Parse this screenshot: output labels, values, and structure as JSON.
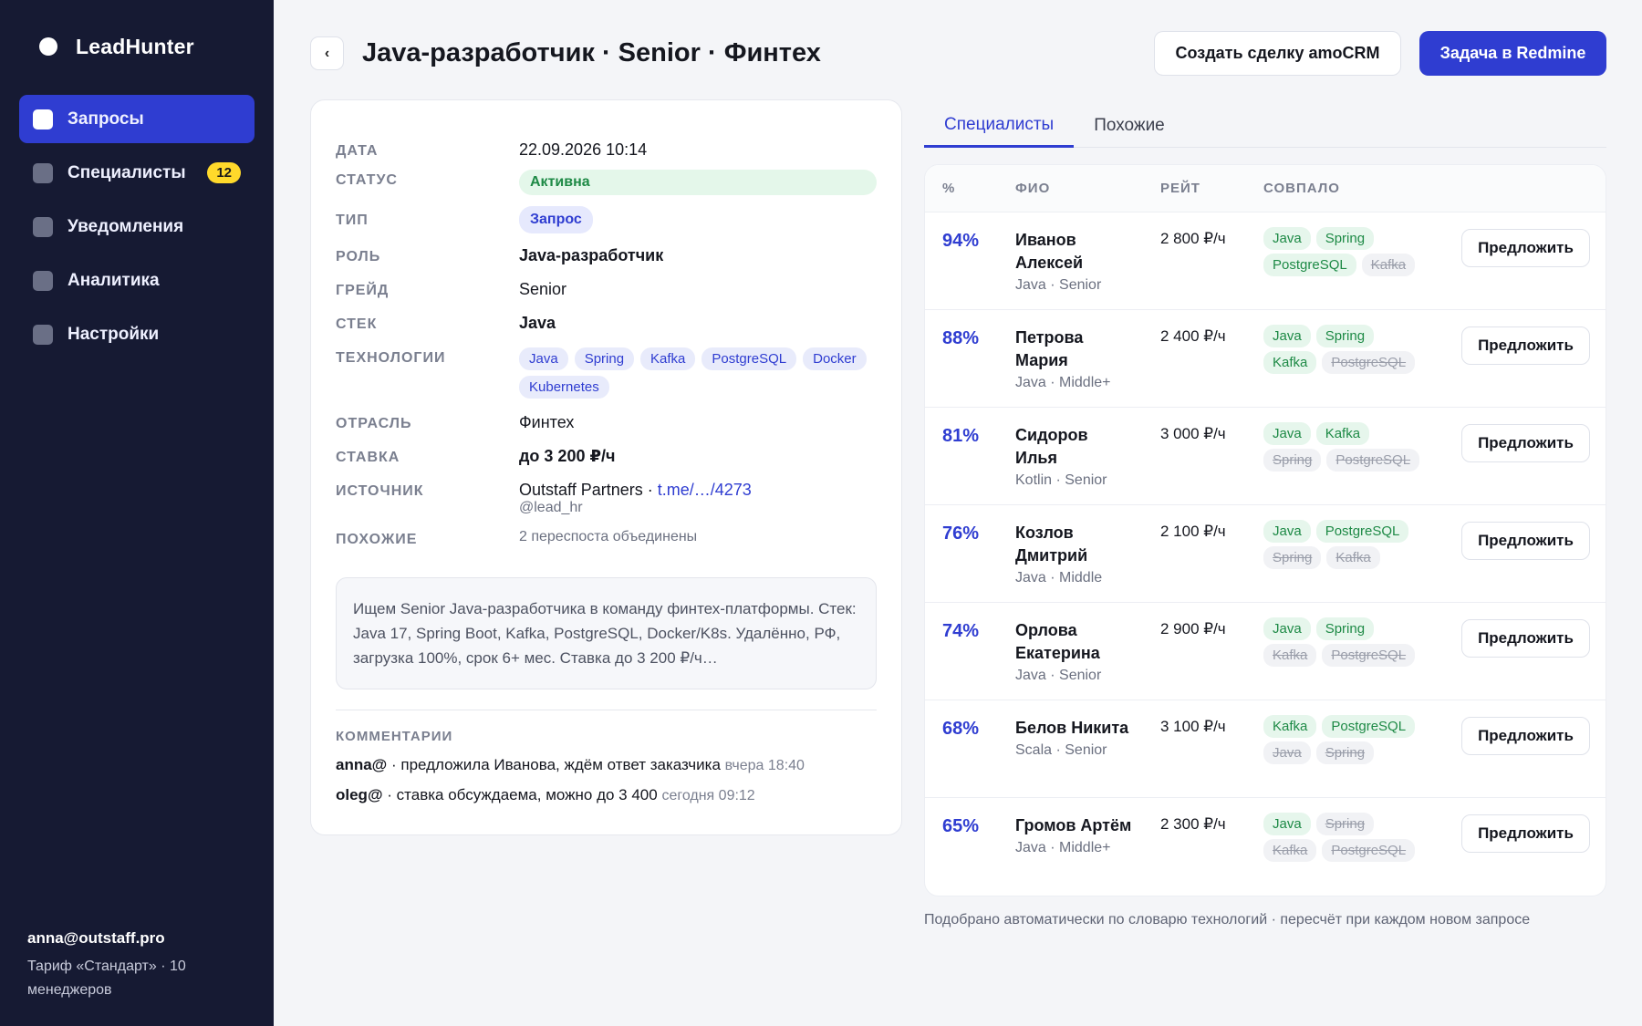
{
  "app": {
    "name": "LeadHunter"
  },
  "sidebar": {
    "items": [
      {
        "label": "Запросы",
        "active": true
      },
      {
        "label": "Специалисты",
        "badge": "12"
      },
      {
        "label": "Уведомления"
      },
      {
        "label": "Аналитика"
      },
      {
        "label": "Настройки"
      }
    ],
    "user_email": "anna@outstaff.pro",
    "plan": "Тариф «Стандарт» · 10 менеджеров"
  },
  "header": {
    "back_label": "‹",
    "title": "Java-разработчик · Senior · Финтех",
    "amo_button": "Создать сделку amoCRM",
    "redmine_button": "Задача в Redmine"
  },
  "details": {
    "date": {
      "label": "ДАТА",
      "value": "22.09.2026 10:14"
    },
    "status": {
      "label": "СТАТУС",
      "value": "Активна"
    },
    "type": {
      "label": "ТИП",
      "value": "Запрос"
    },
    "role": {
      "label": "РОЛЬ",
      "value": "Java-разработчик"
    },
    "grade": {
      "label": "ГРЕЙД",
      "value": "Senior"
    },
    "stack": {
      "label": "СТЕК",
      "value": "Java"
    },
    "technologies": {
      "label": "ТЕХНОЛОГИИ",
      "items": [
        "Java",
        "Spring",
        "Kafka",
        "PostgreSQL",
        "Docker",
        "Kubernetes"
      ]
    },
    "industry": {
      "label": "ОТРАСЛЬ",
      "value": "Финтех"
    },
    "rate": {
      "label": "СТАВКА",
      "value": "до 3 200 ₽/ч"
    },
    "source": {
      "label": "ИСТОЧНИК",
      "name": "Outstaff Partners · ",
      "link": "t.me/…/4273",
      "handle": "@lead_hr"
    },
    "similar": {
      "label": "ПОХОЖИЕ",
      "value": "2 переспоста объединены"
    },
    "description": "Ищем Senior Java-разработчика в команду финтех-платформы. Стек: Java 17, Spring Boot, Kafka, PostgreSQL, Docker/K8s. Удалённо, РФ, загрузка 100%, срок 6+ мес. Ставка до 3 200 ₽/ч…",
    "comments_label": "КОММЕНТАРИИ",
    "comments": [
      {
        "author": "anna@",
        "text": " · предложила Иванова, ждём ответ заказчика ",
        "time": "вчера 18:40"
      },
      {
        "author": "oleg@",
        "text": " · ставка обсуждаема, можно до 3 400 ",
        "time": "сегодня 09:12"
      }
    ]
  },
  "tabs": [
    {
      "label": "Специалисты",
      "active": true
    },
    {
      "label": "Похожие"
    }
  ],
  "specialists": {
    "columns": {
      "pct": "%",
      "name": "ФИО",
      "rate": "РЕЙТ",
      "match": "СОВПАЛО"
    },
    "offer_label": "Предложить",
    "rows": [
      {
        "pct": "94%",
        "name": "Иванов Алексей",
        "sub": "Java · Senior",
        "rate": "2 800 ₽/ч",
        "tags": [
          {
            "t": "Java",
            "hit": true
          },
          {
            "t": "Spring",
            "hit": true
          },
          {
            "t": "PostgreSQL",
            "hit": true
          },
          {
            "t": "Kafka",
            "hit": false
          }
        ]
      },
      {
        "pct": "88%",
        "name": "Петрова Мария",
        "sub": "Java · Middle+",
        "rate": "2 400 ₽/ч",
        "tags": [
          {
            "t": "Java",
            "hit": true
          },
          {
            "t": "Spring",
            "hit": true
          },
          {
            "t": "Kafka",
            "hit": true
          },
          {
            "t": "PostgreSQL",
            "hit": false
          }
        ]
      },
      {
        "pct": "81%",
        "name": "Сидоров Илья",
        "sub": "Kotlin · Senior",
        "rate": "3 000 ₽/ч",
        "tags": [
          {
            "t": "Java",
            "hit": true
          },
          {
            "t": "Kafka",
            "hit": true
          },
          {
            "t": "Spring",
            "hit": false
          },
          {
            "t": "PostgreSQL",
            "hit": false
          }
        ]
      },
      {
        "pct": "76%",
        "name": "Козлов Дмитрий",
        "sub": "Java · Middle",
        "rate": "2 100 ₽/ч",
        "tags": [
          {
            "t": "Java",
            "hit": true
          },
          {
            "t": "PostgreSQL",
            "hit": true
          },
          {
            "t": "Spring",
            "hit": false
          },
          {
            "t": "Kafka",
            "hit": false
          }
        ]
      },
      {
        "pct": "74%",
        "name": "Орлова Екатерина",
        "sub": "Java · Senior",
        "rate": "2 900 ₽/ч",
        "tags": [
          {
            "t": "Java",
            "hit": true
          },
          {
            "t": "Spring",
            "hit": true
          },
          {
            "t": "Kafka",
            "hit": false
          },
          {
            "t": "PostgreSQL",
            "hit": false
          }
        ]
      },
      {
        "pct": "68%",
        "name": "Белов Никита",
        "sub": "Scala · Senior",
        "rate": "3 100 ₽/ч",
        "tags": [
          {
            "t": "Kafka",
            "hit": true
          },
          {
            "t": "PostgreSQL",
            "hit": true
          },
          {
            "t": "Java",
            "hit": false
          },
          {
            "t": "Spring",
            "hit": false
          }
        ]
      },
      {
        "pct": "65%",
        "name": "Громов Артём",
        "sub": "Java · Middle+",
        "rate": "2 300 ₽/ч",
        "tags": [
          {
            "t": "Java",
            "hit": true
          },
          {
            "t": "Spring",
            "hit": false
          },
          {
            "t": "Kafka",
            "hit": false
          },
          {
            "t": "PostgreSQL",
            "hit": false
          }
        ]
      }
    ],
    "note": "Подобрано автоматически по словарю технологий · пересчёт при каждом новом запросе"
  },
  "colors": {
    "accent": "#2f3dd1",
    "sidebar_bg": "#161a33",
    "badge": "#ffd92b",
    "match": "#1e8a46"
  }
}
